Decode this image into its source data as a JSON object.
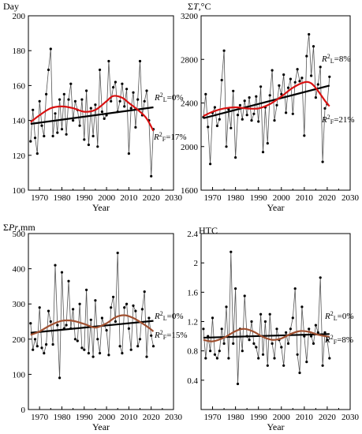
{
  "colors": {
    "line": "#000000",
    "data": "#555555",
    "trend": "#000000",
    "poly_red": "#d81010",
    "poly_brown": "#a05030"
  },
  "chart_data": [
    {
      "type": "line",
      "title": "Day",
      "xlabel": "Year",
      "xlim": [
        1965,
        2030
      ],
      "ylim": [
        100,
        200
      ],
      "xticks": [
        1970,
        1980,
        1990,
        2000,
        2010,
        2020,
        2030
      ],
      "yticks": [
        100,
        120,
        140,
        160,
        180,
        200
      ],
      "x": [
        1966,
        1967,
        1968,
        1969,
        1970,
        1971,
        1972,
        1973,
        1974,
        1975,
        1976,
        1977,
        1978,
        1979,
        1980,
        1981,
        1982,
        1983,
        1984,
        1985,
        1986,
        1987,
        1988,
        1989,
        1990,
        1991,
        1992,
        1993,
        1994,
        1995,
        1996,
        1997,
        1998,
        1999,
        2000,
        2001,
        2002,
        2003,
        2004,
        2005,
        2006,
        2007,
        2008,
        2009,
        2010,
        2011,
        2012,
        2013,
        2014,
        2015,
        2016,
        2017,
        2018,
        2019,
        2020,
        2021
      ],
      "series": [
        {
          "values": [
            128,
            146,
            130,
            121,
            151,
            137,
            131,
            155,
            169,
            181,
            131,
            144,
            133,
            152,
            135,
            155,
            132,
            152,
            161,
            140,
            151,
            146,
            137,
            152,
            129,
            157,
            126,
            147,
            131,
            149,
            125,
            169,
            145,
            141,
            143,
            174,
            151,
            159,
            162,
            145,
            151,
            161,
            148,
            158,
            121,
            147,
            156,
            136,
            152,
            174,
            143,
            151,
            157,
            140,
            108,
            135
          ]
        }
      ],
      "linear_trend": [
        138,
        147.5
      ],
      "polynomial_fit": [
        [
          1966,
          139
        ],
        [
          1970,
          143
        ],
        [
          1975,
          147
        ],
        [
          1980,
          148
        ],
        [
          1985,
          147
        ],
        [
          1990,
          145
        ],
        [
          1995,
          146
        ],
        [
          2000,
          151
        ],
        [
          2003,
          154
        ],
        [
          2007,
          153
        ],
        [
          2010,
          150
        ],
        [
          2015,
          145
        ],
        [
          2018,
          141
        ],
        [
          2021,
          134
        ]
      ],
      "annotations": {
        "r2_linear": "0%",
        "r2_poly": "17%"
      }
    },
    {
      "type": "line",
      "title_sym": "Σ",
      "title_var": "T",
      "title_unit": ",°C",
      "xlabel": "Year",
      "xlim": [
        1965,
        2030
      ],
      "ylim": [
        1600,
        3200
      ],
      "xticks": [
        1970,
        1980,
        1990,
        2000,
        2010,
        2020,
        2030
      ],
      "yticks": [
        1600,
        2000,
        2400,
        2800,
        3200
      ],
      "x": [
        1966,
        1967,
        1968,
        1969,
        1970,
        1971,
        1972,
        1973,
        1974,
        1975,
        1976,
        1977,
        1978,
        1979,
        1980,
        1981,
        1982,
        1983,
        1984,
        1985,
        1986,
        1987,
        1988,
        1989,
        1990,
        1991,
        1992,
        1993,
        1994,
        1995,
        1996,
        1997,
        1998,
        1999,
        2000,
        2001,
        2002,
        2003,
        2004,
        2005,
        2006,
        2007,
        2008,
        2009,
        2010,
        2011,
        2012,
        2013,
        2014,
        2015,
        2016,
        2017,
        2018,
        2019,
        2020,
        2021
      ],
      "series": [
        {
          "values": [
            2270,
            2480,
            2180,
            1840,
            2310,
            2360,
            2190,
            2250,
            2610,
            2880,
            2000,
            2340,
            2170,
            2510,
            1900,
            2290,
            2380,
            2250,
            2420,
            2290,
            2450,
            2240,
            2300,
            2460,
            2230,
            2550,
            1950,
            2360,
            2030,
            2470,
            2700,
            2240,
            2380,
            2560,
            2480,
            2660,
            2310,
            2540,
            2620,
            2300,
            2590,
            2710,
            2600,
            2630,
            2100,
            2830,
            3030,
            2650,
            2920,
            2450,
            2570,
            2730,
            1860,
            2350,
            2390,
            2640
          ]
        }
      ],
      "linear_trend": [
        2260,
        2560
      ],
      "polynomial_fit": [
        [
          1966,
          2280
        ],
        [
          1970,
          2320
        ],
        [
          1975,
          2350
        ],
        [
          1980,
          2360
        ],
        [
          1985,
          2350
        ],
        [
          1990,
          2350
        ],
        [
          1995,
          2390
        ],
        [
          2000,
          2460
        ],
        [
          2005,
          2540
        ],
        [
          2010,
          2590
        ],
        [
          2013,
          2580
        ],
        [
          2016,
          2510
        ],
        [
          2019,
          2420
        ],
        [
          2021,
          2370
        ]
      ],
      "annotations": {
        "r2_linear": "8%",
        "r2_poly": "21%"
      }
    },
    {
      "type": "line",
      "title_sym": "Σ",
      "title_var": "Pr",
      "title_unit": ",mm",
      "xlabel": "Year",
      "xlim": [
        1965,
        2030
      ],
      "ylim": [
        0,
        500
      ],
      "xticks": [
        1970,
        1980,
        1990,
        2000,
        2010,
        2020,
        2030
      ],
      "yticks": [
        0,
        100,
        200,
        300,
        400,
        500
      ],
      "x": [
        1966,
        1967,
        1968,
        1969,
        1970,
        1971,
        1972,
        1973,
        1974,
        1975,
        1976,
        1977,
        1978,
        1979,
        1980,
        1981,
        1982,
        1983,
        1984,
        1985,
        1986,
        1987,
        1988,
        1989,
        1990,
        1991,
        1992,
        1993,
        1994,
        1995,
        1996,
        1997,
        1998,
        1999,
        2000,
        2001,
        2002,
        2003,
        2004,
        2005,
        2006,
        2007,
        2008,
        2009,
        2010,
        2011,
        2012,
        2013,
        2014,
        2015,
        2016,
        2017,
        2018,
        2019,
        2020,
        2021
      ],
      "series": [
        {
          "values": [
            245,
            170,
            200,
            180,
            290,
            175,
            160,
            185,
            280,
            250,
            185,
            410,
            240,
            90,
            390,
            230,
            240,
            365,
            230,
            285,
            200,
            195,
            300,
            175,
            170,
            340,
            160,
            255,
            150,
            310,
            200,
            160,
            260,
            240,
            225,
            155,
            290,
            320,
            250,
            445,
            180,
            160,
            290,
            300,
            230,
            170,
            295,
            280,
            180,
            200,
            285,
            335,
            150,
            260,
            210,
            180
          ]
        }
      ],
      "linear_trend": [
        218,
        252
      ],
      "polynomial_fit": [
        [
          1966,
          212
        ],
        [
          1970,
          222
        ],
        [
          1975,
          240
        ],
        [
          1980,
          252
        ],
        [
          1985,
          252
        ],
        [
          1990,
          243
        ],
        [
          1995,
          233
        ],
        [
          2000,
          245
        ],
        [
          2004,
          262
        ],
        [
          2008,
          268
        ],
        [
          2012,
          260
        ],
        [
          2016,
          245
        ],
        [
          2019,
          232
        ],
        [
          2021,
          222
        ]
      ],
      "annotations": {
        "r2_linear": "0%",
        "r2_poly": "15%"
      }
    },
    {
      "type": "line",
      "title": "HTC",
      "xlabel": "Year",
      "xlim": [
        1965,
        2030
      ],
      "ylim": [
        0,
        2.4
      ],
      "xticks": [
        1970,
        1980,
        1990,
        2000,
        2010,
        2020,
        2030
      ],
      "yticks": [
        0.4,
        0.8,
        1.2,
        1.6,
        2,
        2.4
      ],
      "x": [
        1966,
        1967,
        1968,
        1969,
        1970,
        1971,
        1972,
        1973,
        1974,
        1975,
        1976,
        1977,
        1978,
        1979,
        1980,
        1981,
        1982,
        1983,
        1984,
        1985,
        1986,
        1987,
        1988,
        1989,
        1990,
        1991,
        1992,
        1993,
        1994,
        1995,
        1996,
        1997,
        1998,
        1999,
        2000,
        2001,
        2002,
        2003,
        2004,
        2005,
        2006,
        2007,
        2008,
        2009,
        2010,
        2011,
        2012,
        2013,
        2014,
        2015,
        2016,
        2017,
        2018,
        2019,
        2020,
        2021
      ],
      "series": [
        {
          "values": [
            1.1,
            0.7,
            1.0,
            0.8,
            1.25,
            0.75,
            0.7,
            0.8,
            1.1,
            0.9,
            1.4,
            0.7,
            2.15,
            0.9,
            1.65,
            0.35,
            1.1,
            0.8,
            1.55,
            1.0,
            0.95,
            1.2,
            0.9,
            0.85,
            0.7,
            1.3,
            0.75,
            1.2,
            0.6,
            1.3,
            0.9,
            0.7,
            1.1,
            0.95,
            0.85,
            0.6,
            1.05,
            0.9,
            1.1,
            1.25,
            1.65,
            0.75,
            0.5,
            1.4,
            1.0,
            0.65,
            1.1,
            1.0,
            0.9,
            1.15,
            1.05,
            1.8,
            0.6,
            1.05,
            0.95,
            0.7
          ]
        }
      ],
      "linear_trend": [
        0.98,
        1.03
      ],
      "polynomial_fit": [
        [
          1966,
          0.95
        ],
        [
          1970,
          0.93
        ],
        [
          1975,
          0.98
        ],
        [
          1980,
          1.07
        ],
        [
          1984,
          1.1
        ],
        [
          1988,
          1.06
        ],
        [
          1992,
          0.99
        ],
        [
          1996,
          0.95
        ],
        [
          2000,
          0.97
        ],
        [
          2004,
          1.03
        ],
        [
          2008,
          1.07
        ],
        [
          2012,
          1.06
        ],
        [
          2016,
          1.02
        ],
        [
          2021,
          0.99
        ]
      ],
      "annotations": {
        "r2_linear": "0%",
        "r2_poly": "8%"
      }
    }
  ]
}
